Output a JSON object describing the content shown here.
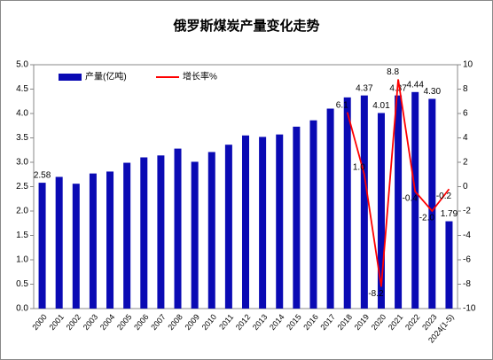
{
  "chart_data": {
    "type": "bar_line",
    "title": "俄罗斯煤炭产量变化走势",
    "categories": [
      "2000",
      "2001",
      "2002",
      "2003",
      "2004",
      "2005",
      "2006",
      "2007",
      "2008",
      "2009",
      "2010",
      "2011",
      "2012",
      "2013",
      "2014",
      "2015",
      "2016",
      "2017",
      "2018",
      "2019",
      "2020",
      "2021",
      "2022",
      "2023",
      "2024(1-5)"
    ],
    "series": [
      {
        "name": "产量(亿吨)",
        "color": "#0a0ab4",
        "type": "bar",
        "values": [
          2.58,
          2.7,
          2.56,
          2.77,
          2.81,
          2.99,
          3.1,
          3.14,
          3.28,
          3.01,
          3.21,
          3.36,
          3.55,
          3.52,
          3.57,
          3.73,
          3.86,
          4.1,
          4.33,
          4.37,
          4.01,
          4.37,
          4.44,
          4.3,
          1.79
        ],
        "value_labels": [
          "2.58",
          null,
          null,
          null,
          null,
          null,
          null,
          null,
          null,
          null,
          null,
          null,
          null,
          null,
          null,
          null,
          null,
          null,
          null,
          "4.37",
          "4.01",
          "4.37",
          "4.44",
          "4.30",
          "1.79"
        ]
      },
      {
        "name": "增长率%",
        "color": "#ff0000",
        "type": "line",
        "axis": "y2",
        "values": [
          null,
          null,
          null,
          null,
          null,
          null,
          null,
          null,
          null,
          null,
          null,
          null,
          null,
          null,
          null,
          null,
          null,
          null,
          6.1,
          1.0,
          -8.2,
          8.8,
          -0.4,
          -2.0,
          -0.2
        ],
        "value_labels": [
          null,
          null,
          null,
          null,
          null,
          null,
          null,
          null,
          null,
          null,
          null,
          null,
          null,
          null,
          null,
          null,
          null,
          null,
          "6.1",
          "1.0",
          "-8.2",
          "8.8",
          "-0.4",
          "-2.0",
          "-0.2"
        ]
      }
    ],
    "ylim": [
      0,
      5
    ],
    "yticks": [
      {
        "value": 0,
        "label": "0.0"
      },
      {
        "value": 0.5,
        "label": "0.5"
      },
      {
        "value": 1,
        "label": "1.0"
      },
      {
        "value": 1.5,
        "label": "1.5"
      },
      {
        "value": 2,
        "label": "2.0"
      },
      {
        "value": 2.5,
        "label": "2.5"
      },
      {
        "value": 3,
        "label": "3.0"
      },
      {
        "value": 3.5,
        "label": "3.5"
      },
      {
        "value": 4,
        "label": "4.0"
      },
      {
        "value": 4.5,
        "label": "4.5"
      },
      {
        "value": 5,
        "label": "5.0"
      }
    ],
    "y2lim": [
      -10,
      10
    ],
    "y2ticks": [
      -10,
      -8,
      -6,
      -4,
      -2,
      0,
      2,
      4,
      6,
      8,
      10
    ],
    "legend": "top-left"
  }
}
